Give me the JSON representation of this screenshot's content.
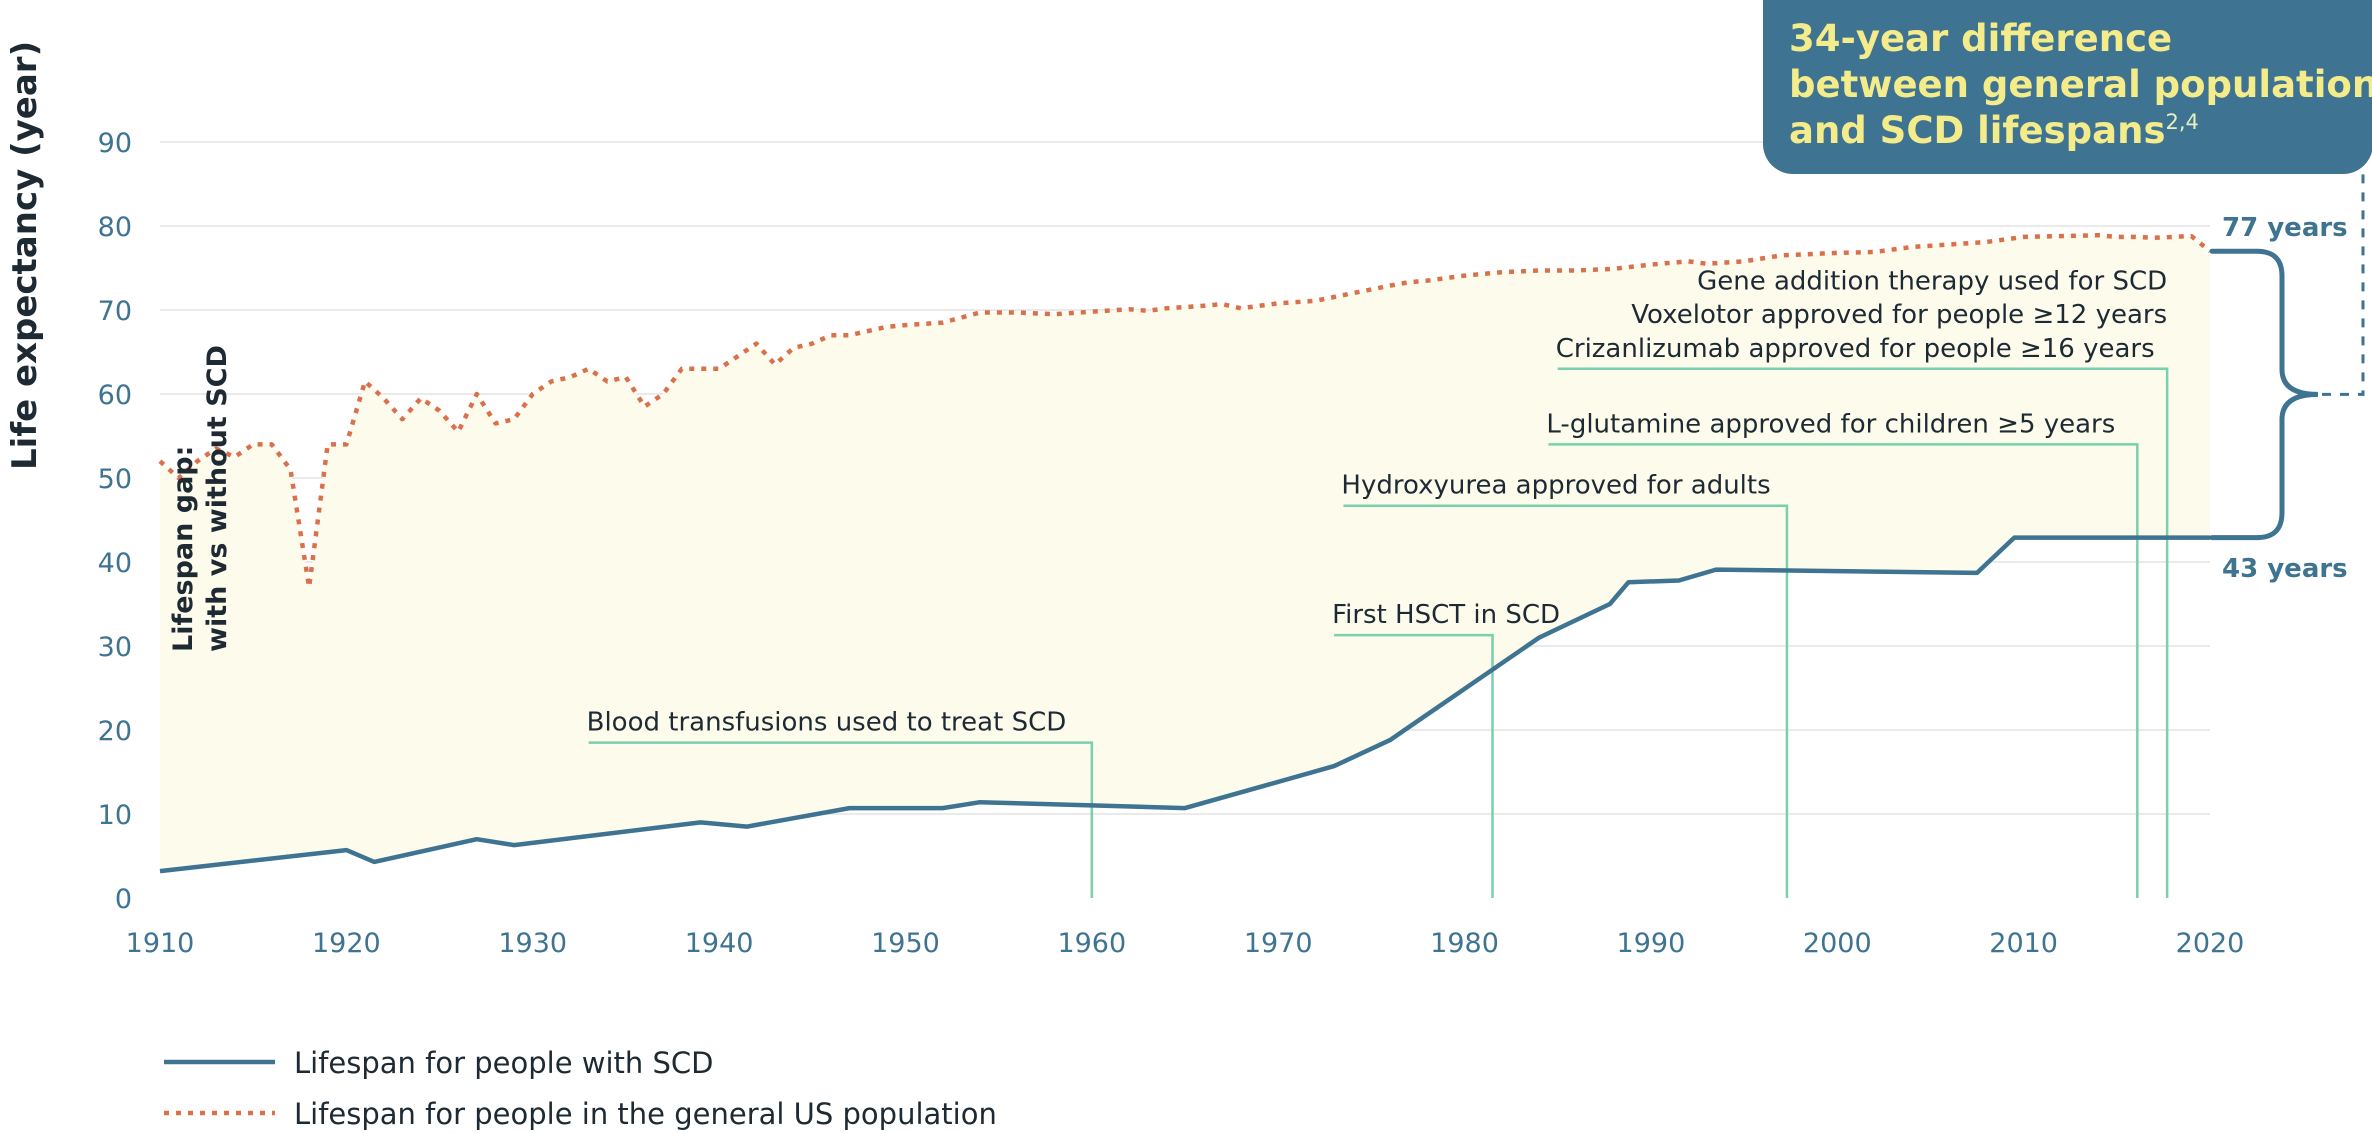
{
  "ylabel": "Life expectancy (year)",
  "gap_label": [
    "Lifespan gap:",
    "with vs without SCD"
  ],
  "callout": {
    "lines": [
      "34-year difference",
      "between general population",
      "and SCD lifespans"
    ],
    "superscript": "2,4"
  },
  "end_labels": {
    "general": "77 years",
    "scd": "43 years"
  },
  "legend": {
    "scd": "Lifespan for people with SCD",
    "general": "Lifespan for people in the general US population"
  },
  "colors": {
    "scd": "#3f7392",
    "general": "#d9714d",
    "gap_fill": "#fdfbec",
    "annotation_line": "#78d0ad",
    "grid": "#e3e3e3"
  },
  "chart_data": {
    "type": "line",
    "xlim": [
      1910,
      2020
    ],
    "ylim": [
      0,
      90
    ],
    "x_ticks": [
      1910,
      1920,
      1930,
      1940,
      1950,
      1960,
      1970,
      1980,
      1990,
      2000,
      2010,
      2020
    ],
    "y_ticks": [
      0,
      10,
      20,
      30,
      40,
      50,
      60,
      70,
      80,
      90
    ],
    "xlabel": "",
    "ylabel": "Life expectancy (year)",
    "grid": "horizontal",
    "legend_position": "bottom-left",
    "series": [
      {
        "name": "Lifespan for people with SCD",
        "style": "solid",
        "points": [
          [
            1910,
            3.2
          ],
          [
            1920,
            5.7
          ],
          [
            1921.5,
            4.3
          ],
          [
            1927,
            7
          ],
          [
            1929,
            6.3
          ],
          [
            1939,
            9
          ],
          [
            1941.5,
            8.5
          ],
          [
            1947,
            10.7
          ],
          [
            1952,
            10.7
          ],
          [
            1954,
            11.4
          ],
          [
            1965,
            10.7
          ],
          [
            1973,
            15.7
          ],
          [
            1976,
            18.8
          ],
          [
            1984,
            31
          ],
          [
            1987.8,
            35
          ],
          [
            1988.8,
            37.6
          ],
          [
            1991.5,
            37.8
          ],
          [
            1993.5,
            39.1
          ],
          [
            2007.5,
            38.7
          ],
          [
            2009.5,
            42.9
          ],
          [
            2020,
            42.9
          ]
        ]
      },
      {
        "name": "Lifespan for people in the general US population",
        "style": "dotted",
        "points": [
          [
            1910,
            52
          ],
          [
            1911,
            50
          ],
          [
            1912,
            52
          ],
          [
            1913,
            53.5
          ],
          [
            1914,
            52.5
          ],
          [
            1915,
            54
          ],
          [
            1916,
            54
          ],
          [
            1917,
            51
          ],
          [
            1918,
            37
          ],
          [
            1919,
            54
          ],
          [
            1920,
            54
          ],
          [
            1921,
            61.5
          ],
          [
            1922,
            59.5
          ],
          [
            1923,
            57
          ],
          [
            1924,
            59.5
          ],
          [
            1925,
            58
          ],
          [
            1926,
            55.5
          ],
          [
            1927,
            60
          ],
          [
            1928,
            56.5
          ],
          [
            1929,
            57
          ],
          [
            1930,
            60
          ],
          [
            1931,
            61.5
          ],
          [
            1932,
            62
          ],
          [
            1933,
            63
          ],
          [
            1934,
            61.5
          ],
          [
            1935,
            62
          ],
          [
            1936,
            58.5
          ],
          [
            1937,
            60
          ],
          [
            1938,
            63
          ],
          [
            1939,
            63
          ],
          [
            1940,
            63
          ],
          [
            1941,
            64.5
          ],
          [
            1942,
            66
          ],
          [
            1943,
            63.5
          ],
          [
            1944,
            65.5
          ],
          [
            1945,
            66
          ],
          [
            1946,
            67
          ],
          [
            1947,
            67
          ],
          [
            1948,
            67.5
          ],
          [
            1949,
            68
          ],
          [
            1950,
            68.2
          ],
          [
            1952,
            68.5
          ],
          [
            1954,
            69.7
          ],
          [
            1956,
            69.7
          ],
          [
            1958,
            69.5
          ],
          [
            1960,
            69.8
          ],
          [
            1962,
            70.1
          ],
          [
            1963,
            69.9
          ],
          [
            1964,
            70.2
          ],
          [
            1966,
            70.5
          ],
          [
            1967,
            70.7
          ],
          [
            1968,
            70.2
          ],
          [
            1970,
            70.8
          ],
          [
            1972,
            71.1
          ],
          [
            1974,
            72
          ],
          [
            1976,
            72.9
          ],
          [
            1977,
            73.3
          ],
          [
            1978,
            73.5
          ],
          [
            1980,
            74.1
          ],
          [
            1982,
            74.5
          ],
          [
            1984,
            74.7
          ],
          [
            1986,
            74.7
          ],
          [
            1988,
            74.9
          ],
          [
            1990,
            75.4
          ],
          [
            1992,
            75.8
          ],
          [
            1993,
            75.5
          ],
          [
            1995,
            75.8
          ],
          [
            1997,
            76.5
          ],
          [
            1999,
            76.7
          ],
          [
            2000,
            76.8
          ],
          [
            2002,
            76.9
          ],
          [
            2004,
            77.5
          ],
          [
            2006,
            77.8
          ],
          [
            2008,
            78.1
          ],
          [
            2010,
            78.7
          ],
          [
            2012,
            78.8
          ],
          [
            2014,
            78.9
          ],
          [
            2015,
            78.7
          ],
          [
            2016,
            78.7
          ],
          [
            2017,
            78.6
          ],
          [
            2018,
            78.7
          ],
          [
            2019,
            78.8
          ],
          [
            2020,
            77
          ]
        ]
      }
    ],
    "annotations": [
      {
        "text": "Blood transfusions used to treat SCD",
        "year": 1960,
        "label_y": 18.5,
        "label_x": 1933
      },
      {
        "text": "First HSCT in SCD",
        "year": 1981.5,
        "label_y": 31.3,
        "label_x": 1973
      },
      {
        "text": "Hydroxyurea approved for adults",
        "year": 1997.3,
        "label_y": 46.7,
        "label_x": 1973.5
      },
      {
        "text": "L-glutamine approved for children ≥5 years",
        "year": 2016.1,
        "label_y": 54,
        "label_x": 1984.5
      },
      {
        "text": "Crizanlizumab approved for people ≥16 years",
        "year": 2017.7,
        "label_y": 63,
        "label_x": 1985
      },
      {
        "text": "Voxelotor approved for people ≥12 years",
        "year": 2017.7,
        "label_y": 67,
        "label_x": null
      },
      {
        "text": "Gene addition therapy used for SCD",
        "year": 2017.7,
        "label_y": 71,
        "label_x": null
      }
    ],
    "end_labels": {
      "general": "77 years",
      "scd": "43 years"
    },
    "difference_years": 34
  }
}
